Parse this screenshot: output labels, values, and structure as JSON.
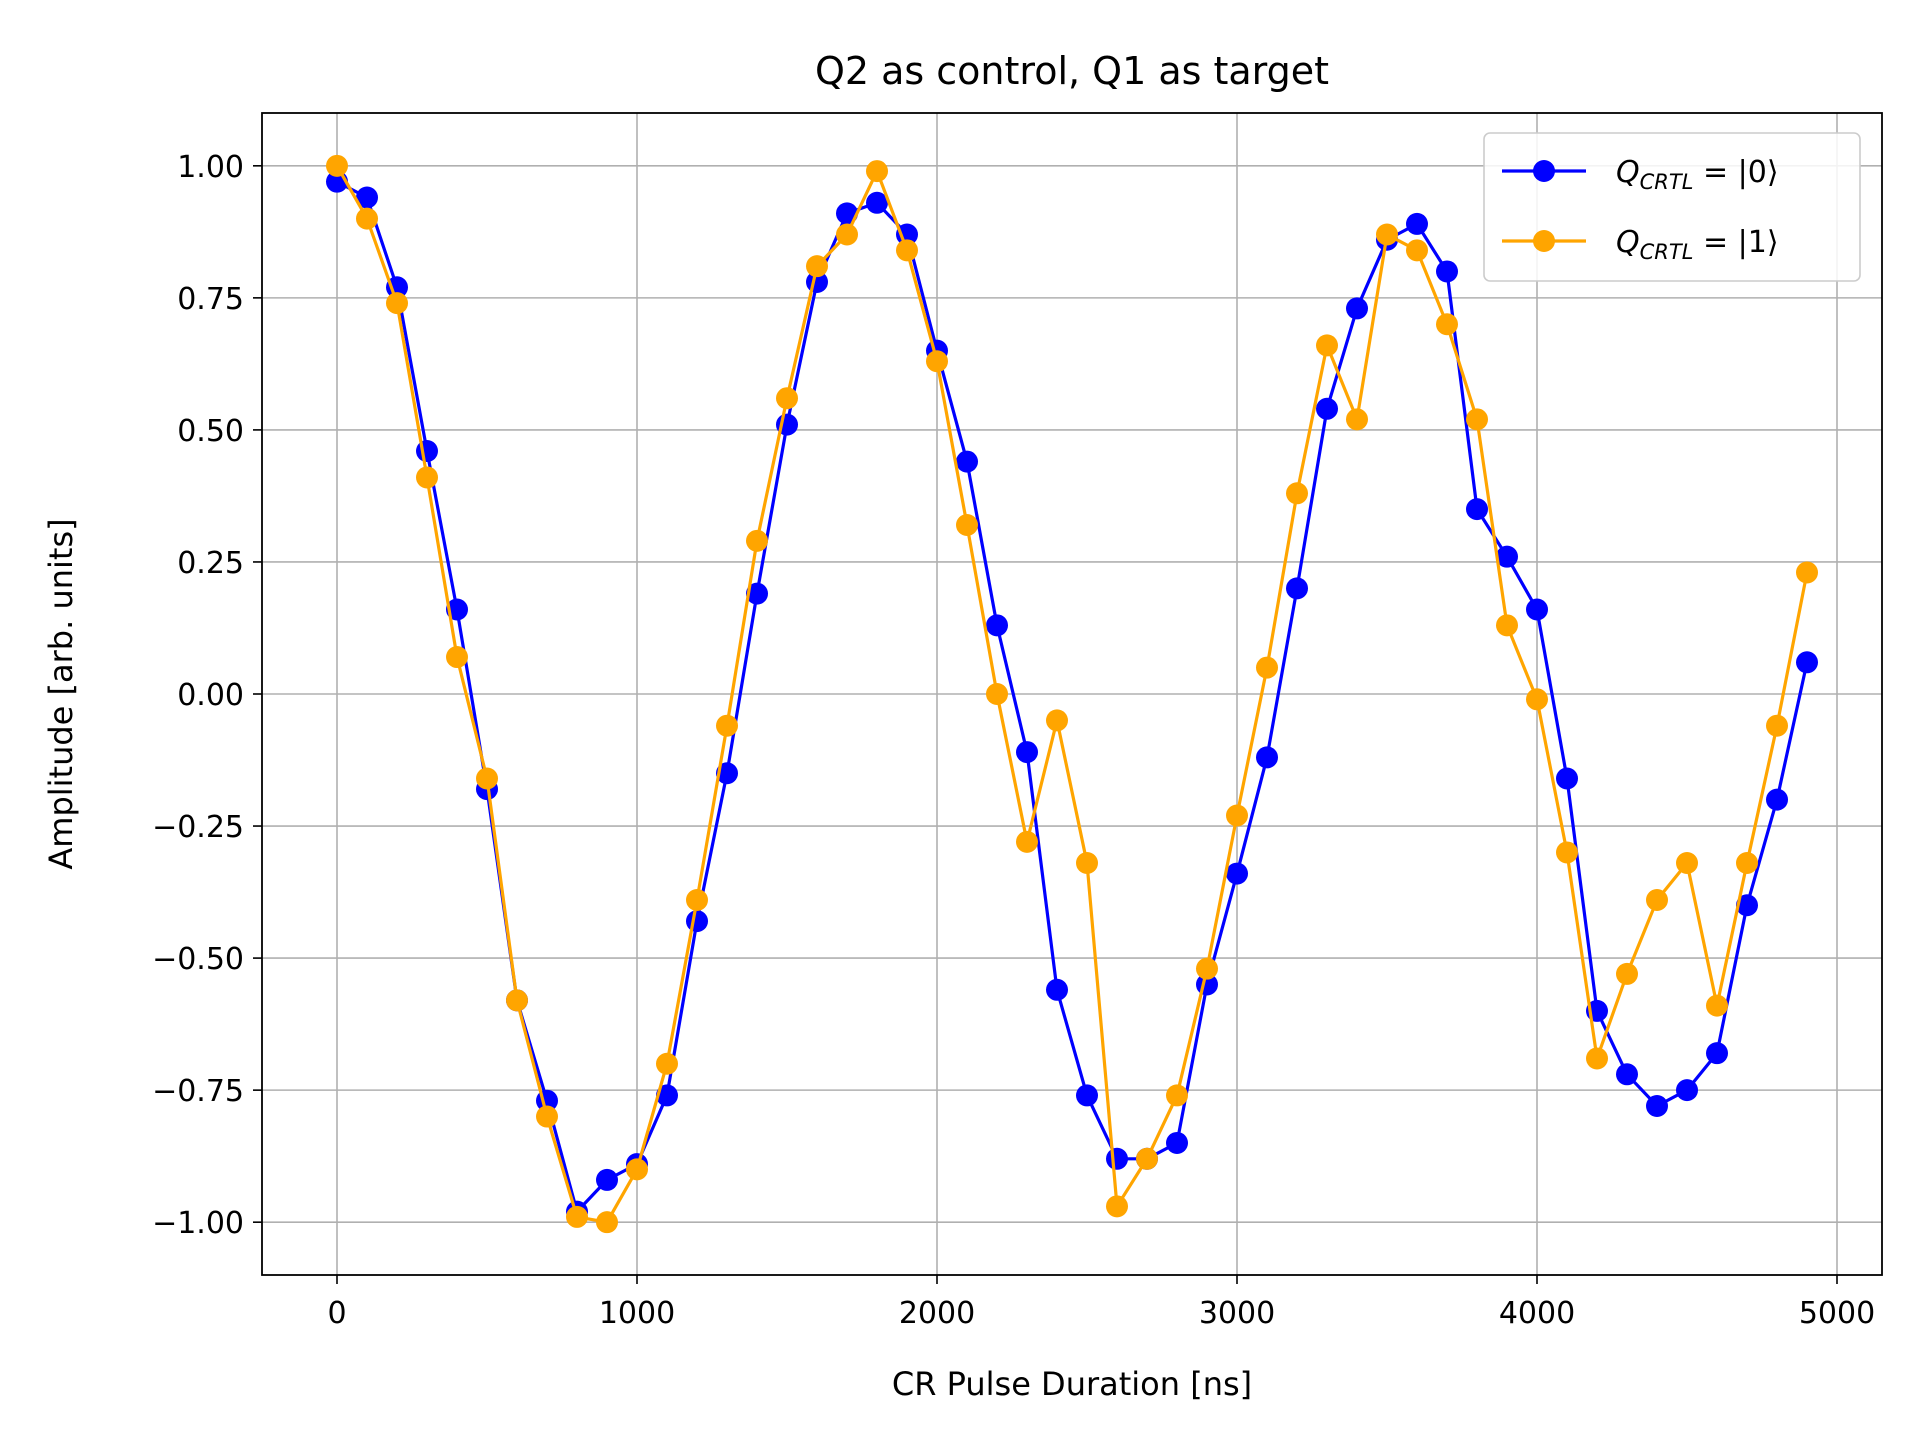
{
  "chart_data": {
    "type": "line",
    "title": "Q2 as control, Q1 as target",
    "xlabel": "CR Pulse Duration [ns]",
    "ylabel": "Amplitude [arb. units]",
    "xlim": [
      -250,
      5150
    ],
    "ylim": [
      -1.1,
      1.1
    ],
    "xticks": [
      0,
      1000,
      2000,
      3000,
      4000,
      5000
    ],
    "xtick_labels": [
      "0",
      "1000",
      "2000",
      "3000",
      "4000",
      "5000"
    ],
    "yticks": [
      1.0,
      0.75,
      0.5,
      0.25,
      0.0,
      -0.25,
      -0.5,
      -0.75,
      -1.0
    ],
    "ytick_labels": [
      "1.00",
      "0.75",
      "0.50",
      "0.25",
      "0.00",
      "−0.25",
      "−0.50",
      "−0.75",
      "−1.00"
    ],
    "grid": true,
    "legend_position": "top-right",
    "x": [
      0,
      100,
      200,
      300,
      400,
      500,
      600,
      700,
      800,
      900,
      1000,
      1100,
      1200,
      1300,
      1400,
      1500,
      1600,
      1700,
      1800,
      1900,
      2000,
      2100,
      2200,
      2300,
      2400,
      2500,
      2600,
      2700,
      2800,
      2900,
      3000,
      3100,
      3200,
      3300,
      3400,
      3500,
      3600,
      3700,
      3800,
      3900,
      4000,
      4100,
      4200,
      4300,
      4400,
      4500,
      4600,
      4700,
      4800,
      4900
    ],
    "series": [
      {
        "name": "Q_CRTL = |0⟩",
        "legend_main": "Q",
        "legend_sub": "CRTL",
        "legend_rest": " = |0⟩",
        "color": "#0000ff",
        "values": [
          0.97,
          0.94,
          0.77,
          0.46,
          0.16,
          -0.18,
          -0.58,
          -0.77,
          -0.98,
          -0.92,
          -0.89,
          -0.76,
          -0.43,
          -0.15,
          0.19,
          0.51,
          0.78,
          0.91,
          0.93,
          0.87,
          0.65,
          0.44,
          0.13,
          -0.11,
          -0.56,
          -0.76,
          -0.88,
          -0.88,
          -0.85,
          -0.55,
          -0.34,
          -0.12,
          0.2,
          0.54,
          0.73,
          0.86,
          0.89,
          0.8,
          0.35,
          0.26,
          0.16,
          -0.16,
          -0.6,
          -0.72,
          -0.78,
          -0.75,
          -0.68,
          -0.4,
          -0.2,
          0.06
        ]
      },
      {
        "name": "Q_CRTL = |1⟩",
        "legend_main": "Q",
        "legend_sub": "CRTL",
        "legend_rest": " = |1⟩",
        "color": "#ffa500",
        "values": [
          1.0,
          0.9,
          0.74,
          0.41,
          0.07,
          -0.16,
          -0.58,
          -0.8,
          -0.99,
          -1.0,
          -0.9,
          -0.7,
          -0.39,
          -0.06,
          0.29,
          0.56,
          0.81,
          0.87,
          0.99,
          0.84,
          0.63,
          0.32,
          0.0,
          -0.28,
          -0.05,
          -0.32,
          -0.97,
          -0.88,
          -0.76,
          -0.52,
          -0.23,
          0.05,
          0.38,
          0.66,
          0.52,
          0.87,
          0.84,
          0.7,
          0.52,
          0.13,
          -0.01,
          -0.3,
          -0.69,
          -0.53,
          -0.39,
          -0.32,
          -0.59,
          -0.32,
          -0.06,
          0.23
        ]
      }
    ]
  }
}
